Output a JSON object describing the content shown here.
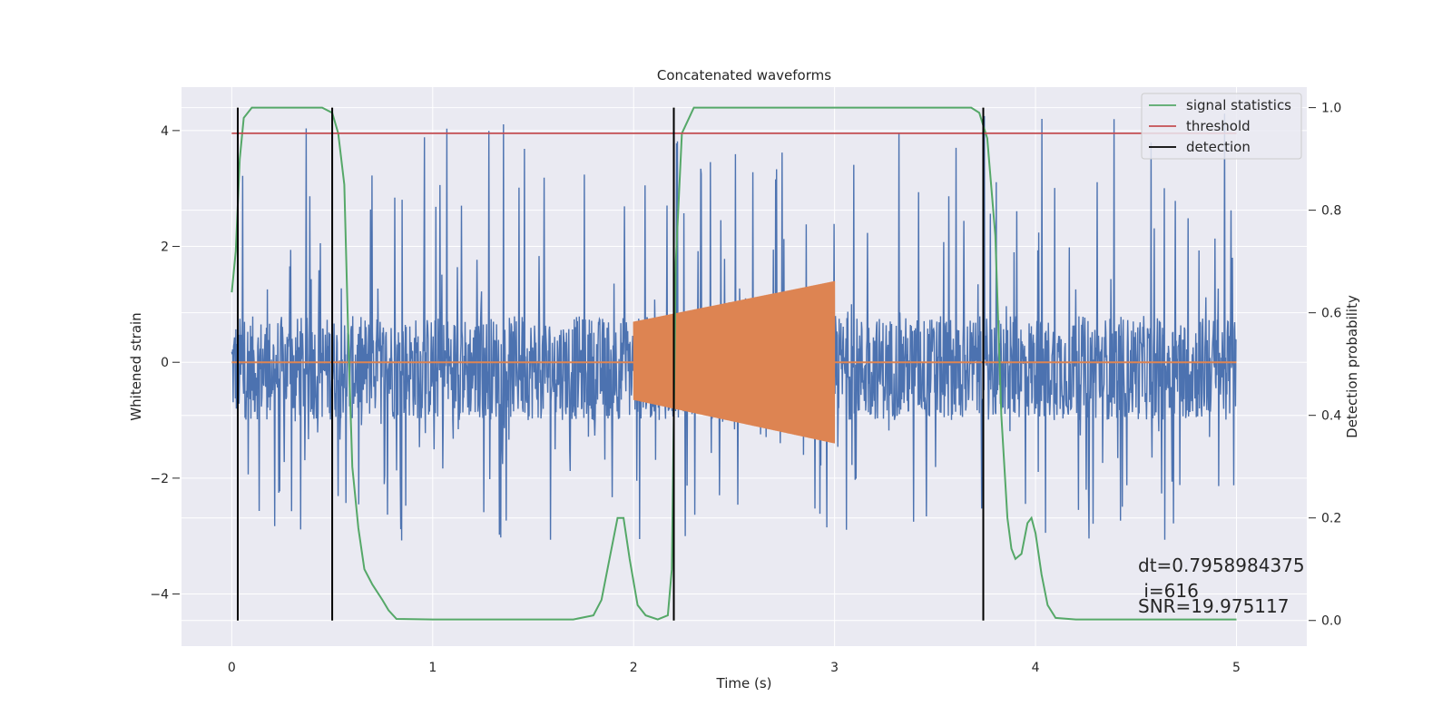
{
  "chart_data": {
    "type": "line",
    "title": "Concatenated waveforms",
    "xlabel": "Time (s)",
    "ylabel": "Whitened strain",
    "y2label": "Detection probability",
    "xlim": [
      -0.25,
      5.35
    ],
    "ylim": [
      -4.9,
      4.75
    ],
    "y2lim": [
      -0.05,
      1.04
    ],
    "xticks": [
      0,
      1,
      2,
      3,
      4,
      5
    ],
    "xtick_labels": [
      "0",
      "1",
      "2",
      "3",
      "4",
      "5"
    ],
    "yticks": [
      -4,
      -2,
      0,
      2,
      4
    ],
    "ytick_labels": [
      "−4",
      "−2",
      "0",
      "2",
      "4"
    ],
    "y2ticks": [
      0.0,
      0.2,
      0.4,
      0.6,
      0.8,
      1.0
    ],
    "y2tick_labels": [
      "0.0",
      "0.2",
      "0.4",
      "0.6",
      "0.8",
      "1.0"
    ],
    "grid": true,
    "legend_position": "top-right",
    "colors": {
      "background": "#eaeaf2",
      "grid": "#ffffff",
      "strain": "#4c72b0",
      "injection": "#dd8452",
      "signal_statistics": "#55a868",
      "threshold": "#c44e52",
      "detection": "#000000"
    },
    "series": [
      {
        "name": "",
        "role": "whitened strain (noise)",
        "axis": "left",
        "x_range": [
          0,
          5
        ],
        "amplitude_band": [
          -1.0,
          0.8
        ],
        "spike_range": [
          -3.1,
          4.3
        ]
      },
      {
        "name": "",
        "role": "injected waveform",
        "axis": "left",
        "x_range": [
          2,
          3
        ],
        "envelope_start": [
          -0.65,
          0.7
        ],
        "envelope_end": [
          -1.4,
          1.4
        ]
      },
      {
        "name": "signal statistics",
        "axis": "right",
        "x": [
          0,
          0.02,
          0.04,
          0.06,
          0.1,
          0.2,
          0.45,
          0.5,
          0.53,
          0.56,
          0.58,
          0.6,
          0.63,
          0.66,
          0.7,
          0.75,
          0.78,
          0.82,
          1.0,
          1.5,
          1.7,
          1.8,
          1.84,
          1.88,
          1.92,
          1.95,
          1.98,
          2.02,
          2.06,
          2.12,
          2.17,
          2.19,
          2.21,
          2.24,
          2.3,
          2.6,
          3.0,
          3.5,
          3.68,
          3.72,
          3.76,
          3.8,
          3.83,
          3.86,
          3.88,
          3.9,
          3.93,
          3.96,
          3.98,
          4.0,
          4.03,
          4.06,
          4.1,
          4.2,
          4.6,
          5.0
        ],
        "y": [
          0.64,
          0.72,
          0.9,
          0.98,
          1.0,
          1.0,
          1.0,
          0.99,
          0.95,
          0.85,
          0.55,
          0.3,
          0.18,
          0.1,
          0.07,
          0.04,
          0.02,
          0.003,
          0.002,
          0.002,
          0.002,
          0.01,
          0.04,
          0.12,
          0.2,
          0.2,
          0.12,
          0.03,
          0.01,
          0.002,
          0.01,
          0.1,
          0.7,
          0.95,
          1.0,
          1.0,
          1.0,
          1.0,
          1.0,
          0.99,
          0.94,
          0.75,
          0.4,
          0.2,
          0.14,
          0.12,
          0.13,
          0.19,
          0.2,
          0.17,
          0.09,
          0.03,
          0.005,
          0.002,
          0.002,
          0.002
        ]
      },
      {
        "name": "threshold",
        "axis": "right",
        "x": [
          0,
          5
        ],
        "y": [
          0.95,
          0.95
        ]
      },
      {
        "name": "detection",
        "axis": "right",
        "type": "vlines",
        "x": [
          0.03,
          0.5,
          2.2,
          3.74
        ],
        "y_range": [
          0.0,
          1.0
        ]
      }
    ],
    "annotations": [
      "dt=0.7958984375",
      " i=616",
      "SNR=19.975117"
    ]
  }
}
